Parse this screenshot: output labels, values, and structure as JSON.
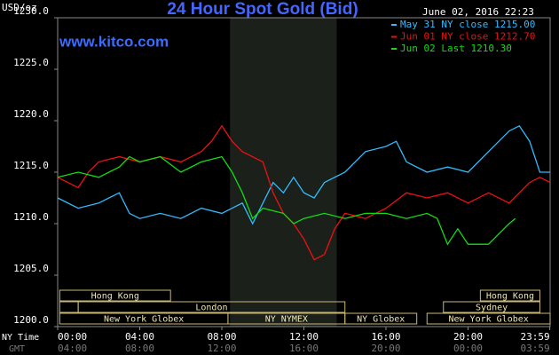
{
  "chart_data": {
    "type": "line",
    "title": "24 Hour Spot Gold (Bid)",
    "site": "www.kitco.com",
    "timestamp": "June 02, 2016 22:23",
    "ylabel": "USD/oz",
    "x_row_label": "NY Time",
    "x2_row_label": "GMT",
    "ylim": [
      1200,
      1230
    ],
    "yticks": [
      {
        "value": 1200,
        "label": "1200.0"
      },
      {
        "value": 1205,
        "label": "1205.0"
      },
      {
        "value": 1210,
        "label": "1210.0"
      },
      {
        "value": 1215,
        "label": "1215.0"
      },
      {
        "value": 1220,
        "label": "1220.0"
      },
      {
        "value": 1225,
        "label": "1225.0"
      },
      {
        "value": 1230,
        "label": "1230.0"
      }
    ],
    "xlim": [
      0,
      24
    ],
    "xticks": [
      {
        "value": 0,
        "label": "00:00"
      },
      {
        "value": 4,
        "label": "04:00"
      },
      {
        "value": 8,
        "label": "08:00"
      },
      {
        "value": 12,
        "label": "12:00"
      },
      {
        "value": 16,
        "label": "16:00"
      },
      {
        "value": 20,
        "label": "20:00"
      },
      {
        "value": 23.983,
        "label": "23:59"
      }
    ],
    "x2ticks": [
      {
        "value": 0,
        "label": "04:00"
      },
      {
        "value": 4,
        "label": "08:00"
      },
      {
        "value": 8,
        "label": "12:00"
      },
      {
        "value": 12,
        "label": "16:00"
      },
      {
        "value": 16,
        "label": "20:00"
      },
      {
        "value": 20,
        "label": "00:00"
      },
      {
        "value": 23.983,
        "label": "03:59"
      }
    ],
    "shaded_range": [
      8.4,
      13.6
    ],
    "sessions": [
      [
        {
          "name": "Hong Kong",
          "start": 0.1,
          "end": 5.5
        },
        {
          "name": "Hong Kong",
          "start": 20.6,
          "end": 23.5
        }
      ],
      [
        {
          "name": null,
          "start": 0.1,
          "end": 1
        },
        {
          "name": "London",
          "start": 1,
          "end": 14
        },
        {
          "name": "Sydney",
          "start": 18.8,
          "end": 23.5
        }
      ],
      [
        {
          "name": "New York Globex",
          "start": 0.1,
          "end": 8.3
        },
        {
          "name": "NY NYMEX",
          "start": 8.3,
          "end": 14
        },
        {
          "name": "NY Globex",
          "start": 14,
          "end": 17.5
        },
        {
          "name": "New York Globex",
          "start": 18,
          "end": 24
        }
      ]
    ],
    "series": [
      {
        "name": "May 31 NY close 1215.00",
        "color": "#33bbff",
        "x": [
          0,
          1,
          2,
          3,
          3.5,
          4,
          5,
          6,
          7,
          8,
          8.5,
          9,
          9.5,
          10,
          10.5,
          11,
          11.5,
          12,
          12.5,
          13,
          14,
          15,
          16,
          16.5,
          17,
          18,
          19,
          20,
          21,
          22,
          22.5,
          23,
          23.5,
          24
        ],
        "values": [
          1212.5,
          1211.5,
          1212,
          1213,
          1211,
          1210.5,
          1211,
          1210.5,
          1211.5,
          1211,
          1211.5,
          1212,
          1210,
          1212,
          1214,
          1213,
          1214.5,
          1213,
          1212.5,
          1214,
          1215,
          1217,
          1217.5,
          1218,
          1216,
          1215,
          1215.5,
          1215,
          1217,
          1219,
          1219.5,
          1218,
          1215,
          1215
        ]
      },
      {
        "name": "Jun 01 NY close 1212.70",
        "color": "#ee1111",
        "x": [
          0,
          1,
          1.5,
          2,
          3,
          4,
          5,
          6,
          7,
          7.5,
          8,
          8.5,
          9,
          10,
          10.5,
          11,
          11.5,
          12,
          12.5,
          13,
          13.5,
          14,
          15,
          16,
          17,
          18,
          19,
          20,
          21,
          22,
          23,
          23.5,
          24
        ],
        "values": [
          1214.5,
          1213.5,
          1215,
          1216,
          1216.5,
          1216,
          1216.5,
          1216,
          1217,
          1218,
          1219.5,
          1218,
          1217,
          1216,
          1213,
          1211,
          1210,
          1208.5,
          1206.5,
          1207,
          1209.5,
          1211,
          1210.5,
          1211.5,
          1213,
          1212.5,
          1213,
          1212,
          1213,
          1212,
          1214,
          1214.5,
          1214
        ]
      },
      {
        "name": "Jun 02 Last 1210.30",
        "color": "#11dd11",
        "x": [
          0,
          1,
          2,
          3,
          3.5,
          4,
          5,
          6,
          7,
          8,
          8.5,
          9,
          9.5,
          10,
          11,
          11.5,
          12,
          13,
          14,
          15,
          16,
          17,
          18,
          18.5,
          19,
          19.5,
          20,
          21,
          21.5,
          22,
          22.3
        ],
        "values": [
          1214.5,
          1215,
          1214.5,
          1215.5,
          1216.5,
          1216,
          1216.5,
          1215,
          1216,
          1216.5,
          1215,
          1213,
          1210.5,
          1211.5,
          1211,
          1210,
          1210.5,
          1211,
          1210.5,
          1211,
          1211,
          1210.5,
          1211,
          1210.5,
          1208,
          1209.5,
          1208,
          1208,
          1209,
          1210,
          1210.5
        ]
      }
    ]
  }
}
